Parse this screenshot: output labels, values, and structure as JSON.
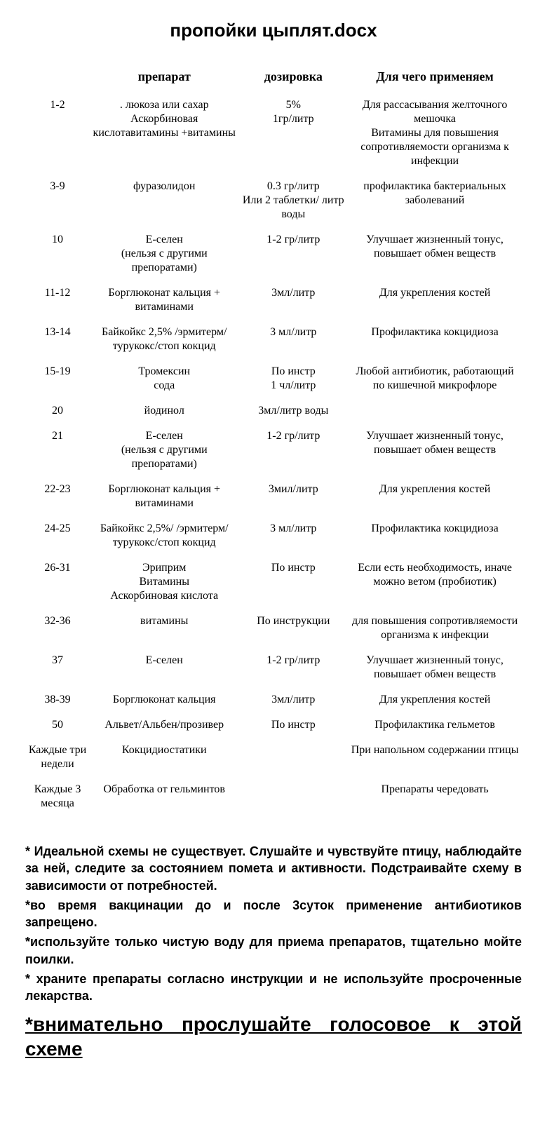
{
  "title": "пропойки цыплят.docx",
  "columns": {
    "day": "",
    "drug": "препарат",
    "dose": "дозировка",
    "purpose": "Для чего применяем"
  },
  "rows": [
    {
      "day": "1-2",
      "drug": ". люкоза или сахар\nАскорбиновая кислотавитамины +витамины",
      "dose": "5%\n1гр/литр",
      "purpose": "Для рассасывания желточного мешочка\nВитамины для повышения сопротивляемости организма к инфекции"
    },
    {
      "day": "3-9",
      "drug": "фуразолидон",
      "dose": "0.3 гр/литр\nИли 2 таблетки/ литр воды",
      "purpose": "профилактика бактериальных заболеваний"
    },
    {
      "day": "10",
      "drug": "Е-селен\n(нельзя с другими препоратами)",
      "dose": "1-2 гр/литр",
      "purpose": "Улучшает  жизненный тонус, повышает обмен веществ"
    },
    {
      "day": "11-12",
      "drug": "Борглюконат кальция + витаминами",
      "dose": "3мл/литр",
      "purpose": "Для укрепления костей"
    },
    {
      "day": "13-14",
      "drug": "Байкойкс 2,5% /эрмитерм/турукокс/стоп кокцид",
      "dose": "3 мл/литр",
      "purpose": "Профилактика кокцидиоза"
    },
    {
      "day": "15-19",
      "drug": "Тромексин\nсода",
      "dose": "По инстр\n1 чл/литр",
      "purpose": "Любой антибиотик, работающий по кишечной микрофлоре"
    },
    {
      "day": "20",
      "drug": "йодинол",
      "dose": "3мл/литр воды",
      "purpose": ""
    },
    {
      "day": "21",
      "drug": "Е-селен\n(нельзя с другими препоратами)",
      "dose": "1-2 гр/литр",
      "purpose": "Улучшает  жизненный тонус, повышает обмен веществ"
    },
    {
      "day": "22-23",
      "drug": "Борглюконат кальция + витаминами",
      "dose": "3мил/литр",
      "purpose": "Для укрепления костей"
    },
    {
      "day": "24-25",
      "drug": "Байкойкс 2,5%/ /эрмитерм/турукокс/стоп кокцид",
      "dose": "3 мл/литр",
      "purpose": "Профилактика кокцидиоза"
    },
    {
      "day": "26-31",
      "drug": "Эриприм\nВитамины\nАскорбиновая кислота",
      "dose": "По инстр",
      "purpose": "Если есть необходимость, иначе можно ветом (пробиотик)"
    },
    {
      "day": "32-36",
      "drug": "витамины",
      "dose": "По инструкции",
      "purpose": "для повышения сопротивляемости организма к инфекции"
    },
    {
      "day": "37",
      "drug": "Е-селен",
      "dose": "1-2 гр/литр",
      "purpose": "Улучшает  жизненный тонус, повышает обмен веществ"
    },
    {
      "day": "38-39",
      "drug": "Борглюконат кальция",
      "dose": "3мл/литр",
      "purpose": "Для укрепления костей"
    },
    {
      "day": "50",
      "drug": "Альвет/Альбен/прозивер",
      "dose": "По инстр",
      "purpose": "Профилактика гельметов"
    },
    {
      "day": "Каждые три недели",
      "drug": "Кокцидиостатики",
      "dose": "",
      "purpose": "При напольном содержании птицы"
    },
    {
      "day": "Каждые 3 месяца",
      "drug": "Обработка от гельминтов",
      "dose": "",
      "purpose": "Препараты чередовать"
    }
  ],
  "notes": [
    "* Идеальной схемы не существует. Слушайте и чувствуйте птицу, наблюдайте за ней, следите за состоянием помета и активности. Подстраивайте схему в зависимости от потребностей.",
    "*во время вакцинации  до и после 3суток  применение антибиотиков запрещено.",
    "*используйте только чистую воду для приема препаратов, тщательно мойте поилки.",
    "* храните препараты согласно инструкции и не используйте просроченные лекарства."
  ],
  "final_note": "*внимательно прослушайте голосовое к этой схеме"
}
